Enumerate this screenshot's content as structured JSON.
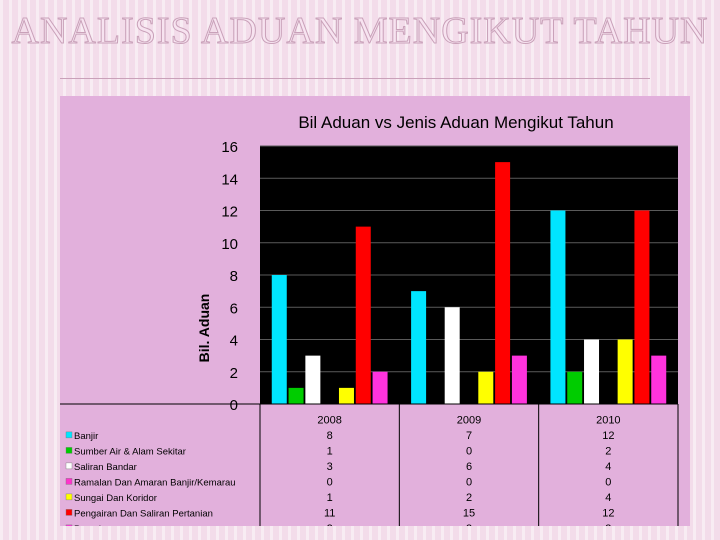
{
  "slide": {
    "title": "ANALISIS ADUAN MENGIKUT TAHUN"
  },
  "colors": {
    "panel": "#e2b0dc",
    "plot_background": "#000000",
    "grid": "#5a5a5a"
  },
  "chart_data": {
    "type": "bar",
    "title": "Bil Aduan vs Jenis Aduan Mengikut Tahun",
    "xlabel": "",
    "ylabel": "Bil. Aduan",
    "ylim": [
      0,
      16
    ],
    "yticks": [
      0,
      2,
      4,
      6,
      8,
      10,
      12,
      14,
      16
    ],
    "grid": true,
    "legend": "bottom-left, inside data table",
    "categories": [
      "2008",
      "2009",
      "2010"
    ],
    "series": [
      {
        "name": "Banjir",
        "color": "#00e5ff",
        "values": [
          8,
          7,
          12
        ]
      },
      {
        "name": "Sumber Air & Alam Sekitar",
        "color": "#00cc00",
        "values": [
          1,
          0,
          2
        ]
      },
      {
        "name": "Saliran Bandar",
        "color": "#ffffff",
        "values": [
          3,
          6,
          4
        ]
      },
      {
        "name": "Ramalan Dan Amaran Banjir/Kemarau",
        "color": "#ff33cc",
        "values": [
          0,
          0,
          0
        ]
      },
      {
        "name": "Sungai Dan Koridor",
        "color": "#ffff00",
        "values": [
          1,
          2,
          4
        ]
      },
      {
        "name": "Pengairan Dan Saliran Pertanian",
        "color": "#ff0000",
        "values": [
          11,
          15,
          12
        ]
      },
      {
        "name": "Pantai",
        "color": "#ff33dd",
        "values": [
          2,
          3,
          3
        ]
      }
    ]
  }
}
